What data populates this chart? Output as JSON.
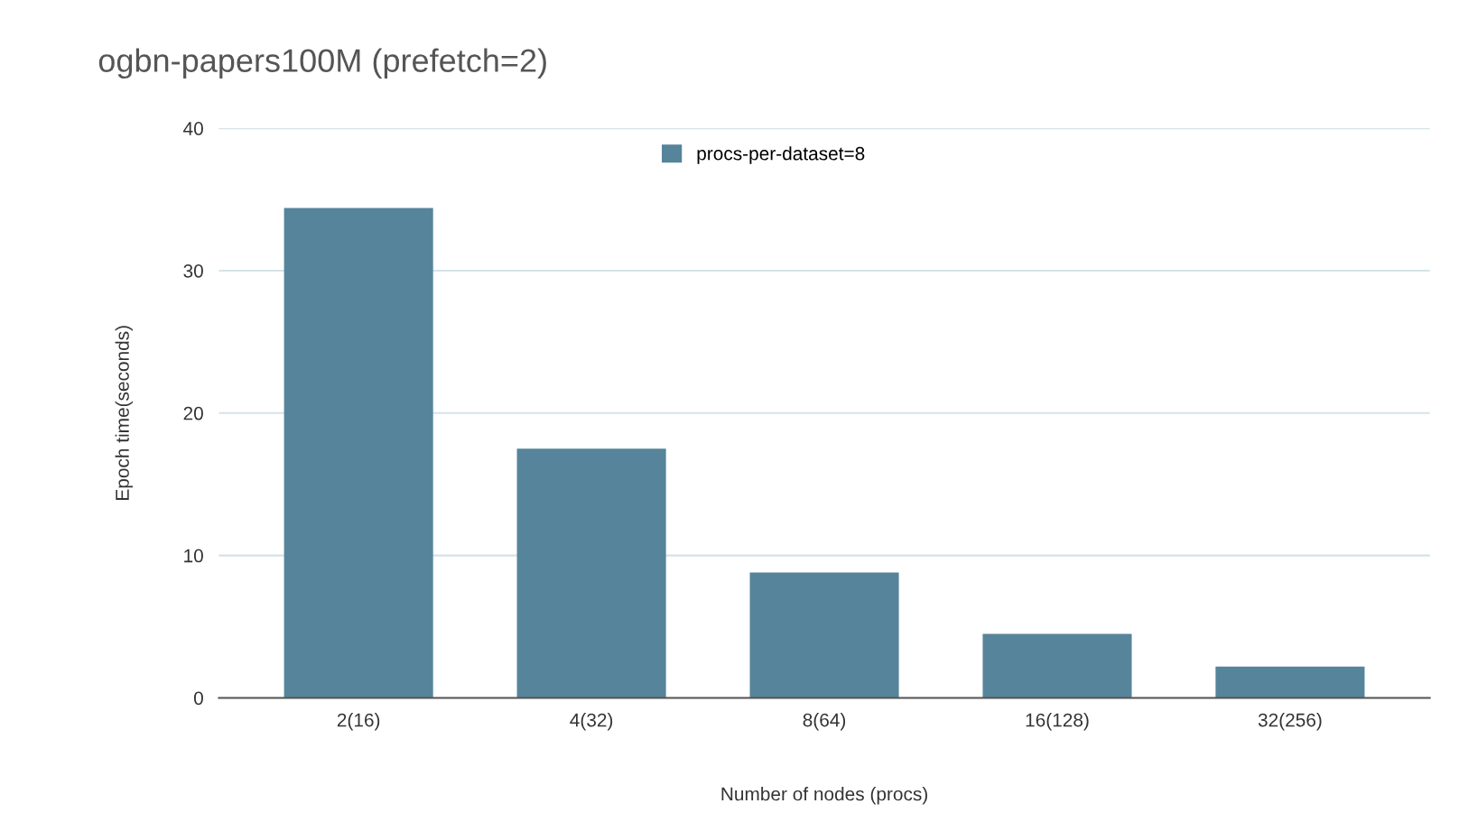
{
  "chart_data": {
    "type": "bar",
    "title": "ogbn-papers100M (prefetch=2)",
    "xlabel": "Number of nodes (procs)",
    "ylabel": "Epoch time(seconds)",
    "categories": [
      "2(16)",
      "4(32)",
      "8(64)",
      "16(128)",
      "32(256)"
    ],
    "series": [
      {
        "name": "procs-per-dataset=8",
        "color": "#56849b",
        "values": [
          34.4,
          17.5,
          8.8,
          4.5,
          2.2
        ]
      }
    ],
    "ylim": [
      0,
      40
    ],
    "yticks": [
      0,
      10,
      20,
      30,
      40
    ],
    "grid": "y",
    "legend": "top"
  }
}
